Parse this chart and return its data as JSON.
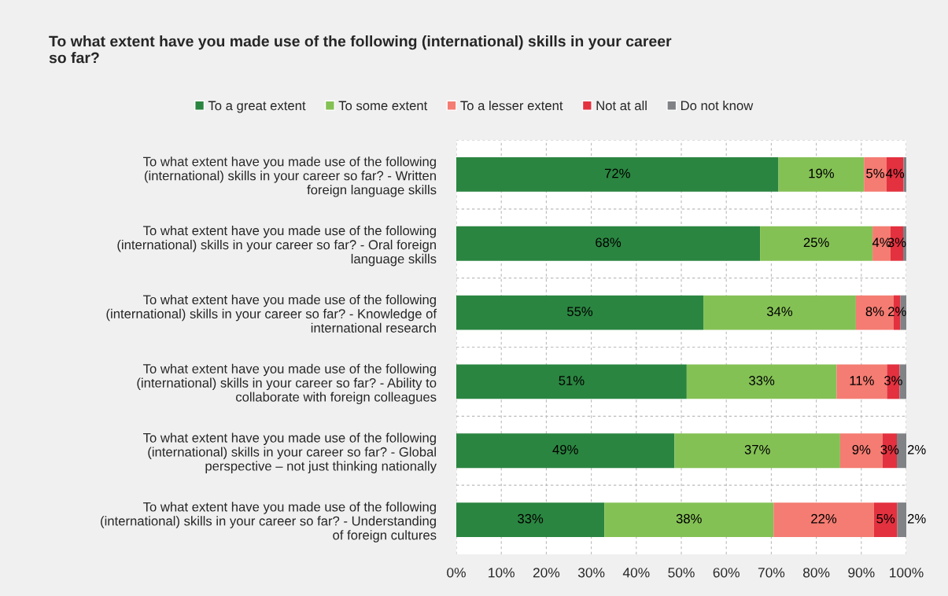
{
  "chart_data": {
    "type": "bar",
    "orientation": "horizontal",
    "stacked": true,
    "title": "To what extent have you made use of the following (international) skills in your career so far?",
    "categories": [
      "To what extent have you made use of the following (international) skills in your career so far? - Written foreign language skills",
      "To what extent have you made use of the following (international) skills in your career so far? - Oral foreign language skills",
      "To what extent have you made use of the following (international) skills in your career so far? - Knowledge of international research",
      "To what extent have you made use of the following (international) skills in your career so far? - Ability to collaborate with foreign colleagues",
      "To what extent have you made use of the following (international) skills in your career so far? - Global perspective – not just thinking nationally",
      "To what extent have you made use of the following (international) skills in your career so far? - Understanding of foreign cultures"
    ],
    "series": [
      {
        "name": "To a great extent",
        "color": "#2a8540",
        "values": [
          71.6,
          67.5,
          54.9,
          51.2,
          48.5,
          32.9
        ],
        "value_labels": [
          "72%",
          "68%",
          "55%",
          "51%",
          "49%",
          "33%"
        ]
      },
      {
        "name": "To some extent",
        "color": "#84c155",
        "values": [
          19.0,
          25.0,
          33.9,
          33.3,
          36.8,
          37.6
        ],
        "value_labels": [
          "19%",
          "25%",
          "34%",
          "33%",
          "37%",
          "38%"
        ]
      },
      {
        "name": "To a lesser extent",
        "color": "#f47c72",
        "values": [
          5.0,
          4.0,
          8.4,
          11.2,
          9.4,
          22.3
        ],
        "value_labels": [
          "5%",
          "4%",
          "8%",
          "11%",
          "9%",
          "22%"
        ]
      },
      {
        "name": "Not at all",
        "color": "#e3313f",
        "values": [
          3.8,
          2.8,
          1.5,
          2.8,
          3.2,
          5.2
        ],
        "value_labels": [
          "4%",
          "3%",
          "2%",
          "3%",
          "3%",
          "5%"
        ]
      },
      {
        "name": "Do not know",
        "color": "#808285",
        "values": [
          0.6,
          0.7,
          1.3,
          1.5,
          2.1,
          2.0
        ],
        "value_labels": [
          null,
          null,
          null,
          null,
          "2%",
          "2%"
        ]
      }
    ],
    "xlim": [
      0,
      100
    ],
    "xticks": [
      {
        "value": 0,
        "label": "0%"
      },
      {
        "value": 10,
        "label": "10%"
      },
      {
        "value": 20,
        "label": "20%"
      },
      {
        "value": 30,
        "label": "30%"
      },
      {
        "value": 40,
        "label": "40%"
      },
      {
        "value": 50,
        "label": "50%"
      },
      {
        "value": 60,
        "label": "60%"
      },
      {
        "value": 70,
        "label": "70%"
      },
      {
        "value": 80,
        "label": "80%"
      },
      {
        "value": 90,
        "label": "90%"
      },
      {
        "value": 100,
        "label": "100%"
      }
    ],
    "grid": true,
    "legend": "top"
  }
}
